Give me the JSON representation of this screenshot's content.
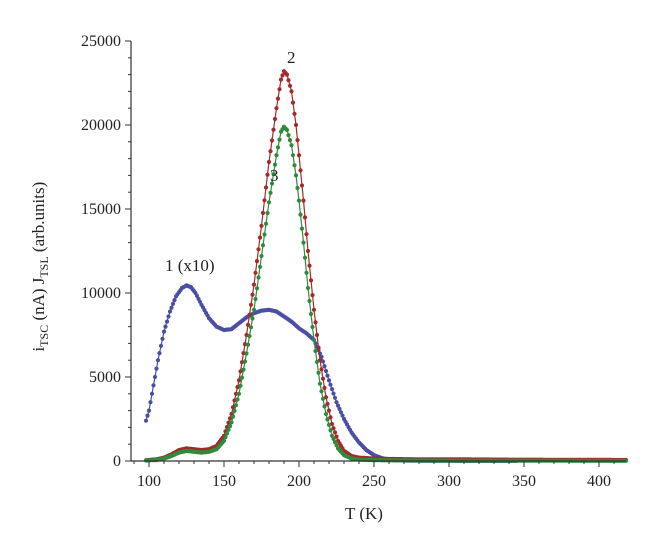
{
  "chart_data": {
    "type": "scatter",
    "title": "",
    "xlabel": "T (K)",
    "ylabel": {
      "line1": {
        "base": "i",
        "sub": "TSC",
        "rest": " (nA)"
      },
      "line2": {
        "base": "J",
        "sub": "TSL",
        "rest": " (arb.units)"
      }
    },
    "xlim": [
      88,
      418
    ],
    "ylim": [
      0,
      25000
    ],
    "xticks": [
      100,
      150,
      200,
      250,
      300,
      350,
      400
    ],
    "yticks": [
      0,
      5000,
      10000,
      15000,
      20000,
      25000
    ],
    "grid": false,
    "series": [
      {
        "name": "1 (x10)",
        "color": "#4a4fa6",
        "points": [
          [
            98,
            2400
          ],
          [
            100,
            3000
          ],
          [
            103,
            4500
          ],
          [
            106,
            6000
          ],
          [
            110,
            7700
          ],
          [
            114,
            8900
          ],
          [
            118,
            9800
          ],
          [
            122,
            10300
          ],
          [
            125,
            10450
          ],
          [
            128,
            10350
          ],
          [
            131,
            10000
          ],
          [
            135,
            9300
          ],
          [
            140,
            8500
          ],
          [
            145,
            8000
          ],
          [
            150,
            7800
          ],
          [
            155,
            7850
          ],
          [
            160,
            8200
          ],
          [
            165,
            8550
          ],
          [
            170,
            8800
          ],
          [
            175,
            8950
          ],
          [
            180,
            9000
          ],
          [
            185,
            8900
          ],
          [
            190,
            8600
          ],
          [
            195,
            8300
          ],
          [
            200,
            7900
          ],
          [
            205,
            7600
          ],
          [
            210,
            7200
          ],
          [
            215,
            6200
          ],
          [
            220,
            4800
          ],
          [
            225,
            3500
          ],
          [
            230,
            2500
          ],
          [
            235,
            1700
          ],
          [
            240,
            1100
          ],
          [
            245,
            650
          ],
          [
            250,
            350
          ],
          [
            255,
            180
          ],
          [
            260,
            80
          ],
          [
            270,
            30
          ],
          [
            280,
            15
          ],
          [
            300,
            10
          ],
          [
            320,
            5
          ],
          [
            345,
            5
          ]
        ]
      },
      {
        "name": "2",
        "color": "#a52a2a",
        "points": [
          [
            98,
            50
          ],
          [
            105,
            100
          ],
          [
            110,
            200
          ],
          [
            115,
            400
          ],
          [
            120,
            650
          ],
          [
            125,
            750
          ],
          [
            130,
            700
          ],
          [
            135,
            650
          ],
          [
            140,
            700
          ],
          [
            145,
            900
          ],
          [
            150,
            1500
          ],
          [
            155,
            2800
          ],
          [
            160,
            4800
          ],
          [
            165,
            7500
          ],
          [
            170,
            10500
          ],
          [
            175,
            14000
          ],
          [
            180,
            17800
          ],
          [
            185,
            21000
          ],
          [
            188,
            22700
          ],
          [
            190,
            23200
          ],
          [
            192,
            23000
          ],
          [
            195,
            22000
          ],
          [
            198,
            20000
          ],
          [
            200,
            18200
          ],
          [
            203,
            15500
          ],
          [
            206,
            12500
          ],
          [
            210,
            9000
          ],
          [
            214,
            6000
          ],
          [
            218,
            3800
          ],
          [
            222,
            2200
          ],
          [
            226,
            1200
          ],
          [
            230,
            600
          ],
          [
            235,
            300
          ],
          [
            240,
            200
          ],
          [
            250,
            150
          ],
          [
            260,
            120
          ],
          [
            280,
            100
          ],
          [
            300,
            100
          ],
          [
            340,
            80
          ],
          [
            380,
            70
          ],
          [
            418,
            60
          ]
        ]
      },
      {
        "name": "3",
        "color": "#2e8b3e",
        "points": [
          [
            98,
            30
          ],
          [
            105,
            60
          ],
          [
            110,
            150
          ],
          [
            115,
            300
          ],
          [
            120,
            500
          ],
          [
            125,
            600
          ],
          [
            130,
            550
          ],
          [
            135,
            500
          ],
          [
            140,
            550
          ],
          [
            145,
            700
          ],
          [
            150,
            1200
          ],
          [
            155,
            2300
          ],
          [
            160,
            4000
          ],
          [
            165,
            6400
          ],
          [
            170,
            9000
          ],
          [
            175,
            12200
          ],
          [
            180,
            15400
          ],
          [
            185,
            18200
          ],
          [
            188,
            19600
          ],
          [
            190,
            19900
          ],
          [
            192,
            19700
          ],
          [
            195,
            18800
          ],
          [
            198,
            17000
          ],
          [
            200,
            15500
          ],
          [
            203,
            13000
          ],
          [
            206,
            10300
          ],
          [
            210,
            7200
          ],
          [
            214,
            4600
          ],
          [
            218,
            2800
          ],
          [
            222,
            1500
          ],
          [
            226,
            750
          ],
          [
            230,
            350
          ],
          [
            235,
            150
          ],
          [
            240,
            80
          ],
          [
            250,
            50
          ],
          [
            260,
            40
          ],
          [
            280,
            30
          ],
          [
            300,
            20
          ],
          [
            340,
            20
          ],
          [
            380,
            15
          ],
          [
            418,
            10
          ]
        ]
      }
    ],
    "annotations": [
      "1 (x10)",
      "2",
      "3"
    ]
  }
}
